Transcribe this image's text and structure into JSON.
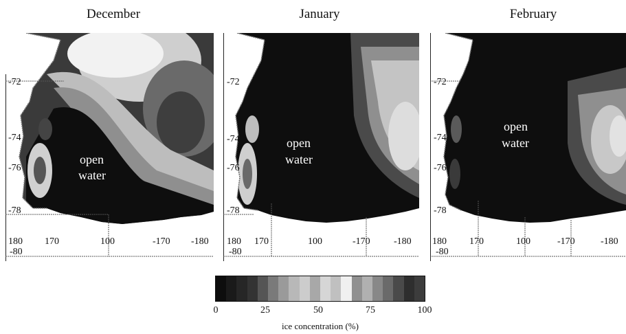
{
  "panels": [
    {
      "title": "December",
      "lat_labels": [
        "-72",
        "-74",
        "-76",
        "-78",
        "-80"
      ],
      "lon_labels": [
        "180",
        "170",
        "100",
        "-170",
        "-180"
      ],
      "region_label": [
        "open",
        "water"
      ]
    },
    {
      "title": "January",
      "lat_labels": [
        "-72",
        "-74",
        "-76",
        "-78",
        "-80"
      ],
      "lon_labels": [
        "180",
        "170",
        "100",
        "-170",
        "-180"
      ],
      "region_label": [
        "open",
        "water"
      ]
    },
    {
      "title": "February",
      "lat_labels": [
        "-72",
        "-74",
        "-76",
        "-78",
        "-80"
      ],
      "lon_labels": [
        "180",
        "170",
        "100",
        "-170",
        "-180"
      ],
      "region_label": [
        "open",
        "water"
      ]
    }
  ],
  "colorbar": {
    "label": "ice concentration (%)",
    "ticks": [
      "0",
      "25",
      "50",
      "75",
      "100"
    ],
    "colors": [
      "#0d0d0d",
      "#1a1a1a",
      "#262626",
      "#333333",
      "#555555",
      "#7a7a7a",
      "#9a9a9a",
      "#b8b8b8",
      "#cccccc",
      "#a8a8a8",
      "#d6d6d6",
      "#c0c0c0",
      "#f0f0f0",
      "#909090",
      "#b0b0b0",
      "#888888",
      "#6a6a6a",
      "#4a4a4a",
      "#2e2e2e",
      "#3c3c3c"
    ]
  }
}
